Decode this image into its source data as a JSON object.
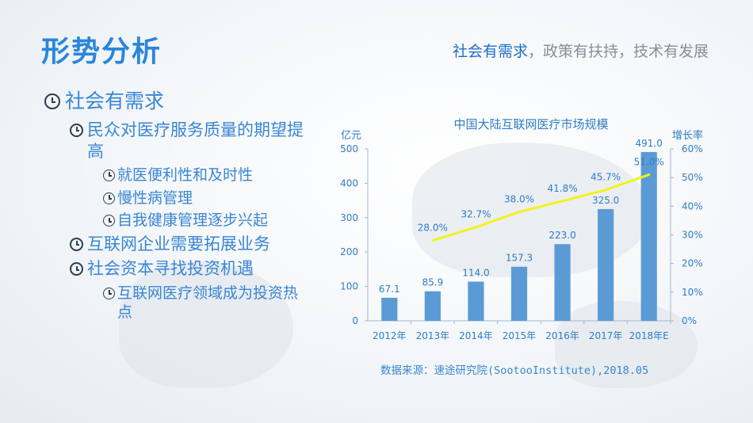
{
  "page": {
    "title": "形势分析",
    "subtitle_highlight": "社会有需求",
    "subtitle_rest": "，政策有扶持，技术有发展"
  },
  "bullets": [
    {
      "level": 1,
      "text": "社会有需求"
    },
    {
      "level": 2,
      "text": "民众对医疗服务质量的期望提高"
    },
    {
      "level": 3,
      "text": "就医便利性和及时性"
    },
    {
      "level": 3,
      "text": "慢性病管理"
    },
    {
      "level": 3,
      "text": "自我健康管理逐步兴起"
    },
    {
      "level": 2,
      "text": "互联网企业需要拓展业务"
    },
    {
      "level": 2,
      "text": "社会资本寻找投资机遇"
    },
    {
      "level": 3,
      "text": "互联网医疗领域成为投资热点"
    }
  ],
  "source": "数据来源：速途研究院(SootooInstitute),2018.05",
  "chart_data": {
    "type": "bar",
    "title": "中国大陆互联网医疗市场规模",
    "ylabel": "亿元",
    "y2label": "增长率",
    "categories": [
      "2012年",
      "2013年",
      "2014年",
      "2015年",
      "2016年",
      "2017年",
      "2018年E"
    ],
    "ylim": [
      0,
      500
    ],
    "yticks": [
      "0",
      "100",
      "200",
      "300",
      "400",
      "500"
    ],
    "y2lim": [
      0,
      60
    ],
    "y2ticks": [
      "0%",
      "10%",
      "20%",
      "30%",
      "40%",
      "50%",
      "60%"
    ],
    "series": [
      {
        "type": "bar",
        "values": [
          67.1,
          85.9,
          114.0,
          157.3,
          223.0,
          325.0,
          491.0
        ],
        "labels": [
          "67.1",
          "85.9",
          "114.0",
          "157.3",
          "223.0",
          "325.0",
          "491.0"
        ],
        "color": "#5b9bd5"
      },
      {
        "type": "line",
        "axis": "right",
        "values": [
          null,
          28.0,
          32.7,
          38.0,
          41.8,
          45.7,
          51.0
        ],
        "labels": [
          "",
          "28.0%",
          "32.7%",
          "38.0%",
          "41.8%",
          "45.7%",
          "51.0%"
        ],
        "color": "#f2f21d"
      }
    ],
    "grid": false,
    "colors": {
      "text": "#2e7cc6",
      "axis": "#9fb9d6"
    }
  }
}
